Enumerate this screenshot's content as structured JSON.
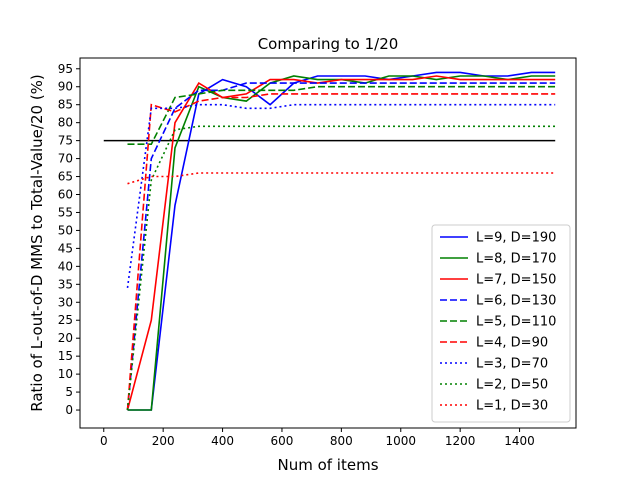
{
  "chart_data": {
    "type": "line",
    "title": "Comparing to 1/20",
    "xlabel": "Num of items",
    "ylabel": "Ratio of L-out-of-D MMS to Total-Value/20 (%)",
    "xlim": [
      -80,
      1590
    ],
    "ylim": [
      -5,
      98
    ],
    "xticks": [
      0,
      200,
      400,
      600,
      800,
      1000,
      1200,
      1400
    ],
    "yticks": [
      0,
      5,
      10,
      15,
      20,
      25,
      30,
      35,
      40,
      45,
      50,
      55,
      60,
      65,
      70,
      75,
      80,
      85,
      90,
      95
    ],
    "grid": false,
    "legend_position": "lower-right",
    "reference_line": {
      "y": 75,
      "x": [
        0,
        1520
      ],
      "color": "#000000"
    },
    "series": [
      {
        "name": "L=9, D=190",
        "color": "#0000ff",
        "style": "solid",
        "x": [
          80,
          160,
          240,
          320,
          400,
          480,
          560,
          640,
          720,
          800,
          880,
          960,
          1040,
          1120,
          1200,
          1280,
          1360,
          1440,
          1520
        ],
        "y": [
          0,
          0,
          57,
          88,
          92,
          90,
          85,
          91,
          93,
          93,
          93,
          92,
          93,
          94,
          94,
          93,
          93,
          94,
          94
        ]
      },
      {
        "name": "L=8, D=170",
        "color": "#008000",
        "style": "solid",
        "x": [
          80,
          160,
          240,
          320,
          400,
          480,
          560,
          640,
          720,
          800,
          880,
          960,
          1040,
          1120,
          1200,
          1280,
          1360,
          1440,
          1520
        ],
        "y": [
          0,
          0,
          73,
          90,
          87,
          86,
          91,
          93,
          92,
          92,
          91,
          93,
          93,
          92,
          93,
          93,
          92,
          93,
          93
        ]
      },
      {
        "name": "L=7, D=150",
        "color": "#ff0000",
        "style": "solid",
        "x": [
          80,
          160,
          240,
          320,
          400,
          480,
          560,
          640,
          720,
          800,
          880,
          960,
          1040,
          1120,
          1200,
          1280,
          1360,
          1440,
          1520
        ],
        "y": [
          0,
          25,
          80,
          91,
          87,
          88,
          92,
          92,
          91,
          92,
          92,
          92,
          92,
          93,
          92,
          92,
          92,
          92,
          92
        ]
      },
      {
        "name": "L=6, D=130",
        "color": "#0000ff",
        "style": "dashed",
        "x": [
          80,
          160,
          240,
          320,
          400,
          480,
          560,
          640,
          720,
          800,
          880,
          960,
          1040,
          1120,
          1200,
          1280,
          1360,
          1440,
          1520
        ],
        "y": [
          0,
          70,
          84,
          89,
          89,
          91,
          91,
          91,
          91,
          91,
          91,
          91,
          91,
          91,
          91,
          91,
          91,
          91,
          91
        ]
      },
      {
        "name": "L=5, D=110",
        "color": "#008000",
        "style": "dashed",
        "x": [
          80,
          160,
          240,
          320,
          400,
          480,
          560,
          640,
          720,
          800,
          880,
          960,
          1040,
          1120,
          1200,
          1280,
          1360,
          1440,
          1520
        ],
        "y": [
          74,
          74,
          87,
          88,
          89,
          89,
          89,
          89,
          90,
          90,
          90,
          90,
          90,
          90,
          90,
          90,
          90,
          90,
          90
        ]
      },
      {
        "name": "L=4, D=90",
        "color": "#ff0000",
        "style": "dashed",
        "x": [
          80,
          160,
          240,
          320,
          400,
          480,
          560,
          640,
          720,
          800,
          880,
          960,
          1040,
          1120,
          1200,
          1280,
          1360,
          1440,
          1520
        ],
        "y": [
          0,
          85,
          83,
          86,
          87,
          87,
          88,
          88,
          88,
          88,
          88,
          88,
          88,
          88,
          88,
          88,
          88,
          88,
          88
        ]
      },
      {
        "name": "L=3, D=70",
        "color": "#0000ff",
        "style": "dotted",
        "x": [
          80,
          160,
          240,
          320,
          400,
          480,
          560,
          640,
          720,
          800,
          880,
          960,
          1040,
          1120,
          1200,
          1280,
          1360,
          1440,
          1520
        ],
        "y": [
          34,
          84,
          84,
          85,
          85,
          84,
          84,
          85,
          85,
          85,
          85,
          85,
          85,
          85,
          85,
          85,
          85,
          85,
          85
        ]
      },
      {
        "name": "L=2, D=50",
        "color": "#008000",
        "style": "dotted",
        "x": [
          80,
          160,
          240,
          320,
          400,
          480,
          560,
          640,
          720,
          800,
          880,
          960,
          1040,
          1120,
          1200,
          1280,
          1360,
          1440,
          1520
        ],
        "y": [
          0,
          64,
          78,
          79,
          79,
          79,
          79,
          79,
          79,
          79,
          79,
          79,
          79,
          79,
          79,
          79,
          79,
          79,
          79
        ]
      },
      {
        "name": "L=1, D=30",
        "color": "#ff0000",
        "style": "dotted",
        "x": [
          80,
          160,
          240,
          320,
          400,
          480,
          560,
          640,
          720,
          800,
          880,
          960,
          1040,
          1120,
          1200,
          1280,
          1360,
          1440,
          1520
        ],
        "y": [
          63,
          65,
          65,
          66,
          66,
          66,
          66,
          66,
          66,
          66,
          66,
          66,
          66,
          66,
          66,
          66,
          66,
          66,
          66
        ]
      }
    ]
  }
}
